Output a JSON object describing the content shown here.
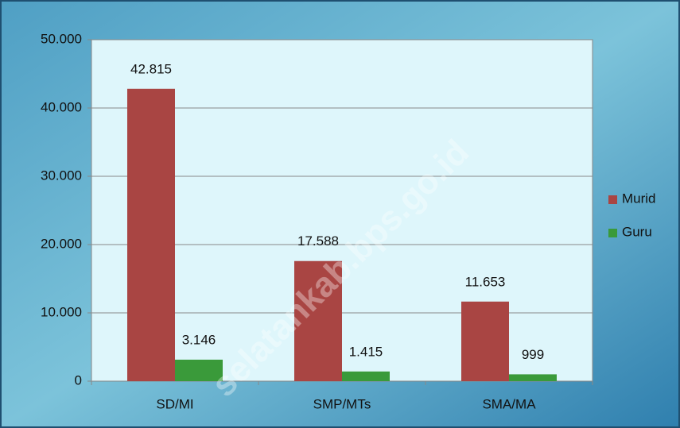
{
  "chart_data": {
    "type": "bar",
    "categories": [
      "SD/MI",
      "SMP/MTs",
      "SMA/MA"
    ],
    "series": [
      {
        "name": "Murid",
        "color": "#a94543",
        "values": [
          42815,
          17588,
          11653
        ],
        "value_labels": [
          "42.815",
          "17.588",
          "11.653"
        ]
      },
      {
        "name": "Guru",
        "color": "#3a9a3a",
        "values": [
          3146,
          1415,
          999
        ],
        "value_labels": [
          "3.146",
          "1.415",
          "999"
        ]
      }
    ],
    "ylim": [
      0,
      50000
    ],
    "yticks": [
      0,
      {
        "value": 10000,
        "label": "10.000"
      },
      {
        "value": 20000,
        "label": "20.000"
      },
      {
        "value": 30000,
        "label": "30.000"
      },
      {
        "value": 40000,
        "label": "40.000"
      },
      {
        "value": 50000,
        "label": "50.000"
      }
    ],
    "grid": true,
    "legend": "right",
    "watermark": "selatankab.bps.go.id"
  }
}
